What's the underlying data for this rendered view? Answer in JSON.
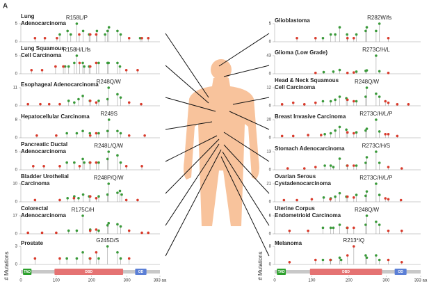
{
  "figure_label": "A",
  "chart_data": [
    {
      "type": "lollipop",
      "title": [
        "Lung",
        "Adenocarcinoma"
      ],
      "hotspot_label": "R158L/P",
      "xlim": [
        0,
        393
      ],
      "ylim": [
        0,
        5
      ],
      "yticks": [
        0,
        5
      ],
      "series": [
        {
          "color": "#3a9a3a",
          "x": [
            110,
            132,
            141,
            158,
            176,
            193,
            215,
            238,
            245,
            249,
            273,
            282,
            337
          ],
          "values": [
            2,
            3,
            2,
            5,
            3,
            2,
            3,
            2,
            3,
            4,
            3,
            2,
            1
          ]
        },
        {
          "color": "#d93a2b",
          "x": [
            40,
            68,
            102,
            165,
            196,
            213,
            306,
            342,
            360
          ],
          "values": [
            1,
            1,
            1,
            2,
            2,
            2,
            1,
            1,
            1
          ]
        }
      ]
    },
    {
      "type": "lollipop",
      "title": [
        "Lung Squamous",
        "Cell Carcinoma"
      ],
      "hotspot_label": "R158H/L/fs",
      "xlim": [
        0,
        393
      ],
      "ylim": [
        0,
        5
      ],
      "yticks": [
        0,
        5
      ],
      "series": [
        {
          "color": "#3a9a3a",
          "x": [
            125,
            135,
            151,
            158,
            175,
            179,
            193,
            220,
            245,
            248,
            273,
            280
          ],
          "values": [
            2,
            2,
            3,
            5,
            3,
            2,
            2,
            3,
            3,
            3,
            3,
            2
          ]
        },
        {
          "color": "#d93a2b",
          "x": [
            30,
            60,
            98,
            120,
            166,
            196,
            213,
            298,
            330
          ],
          "values": [
            1,
            1,
            2,
            2,
            3,
            2,
            3,
            1,
            1
          ]
        }
      ]
    },
    {
      "type": "lollipop",
      "title": [
        "Esophageal Adenocarcinoma"
      ],
      "hotspot_label": "R248Q/W",
      "xlim": [
        0,
        393
      ],
      "ylim": [
        0,
        11
      ],
      "yticks": [
        0,
        11
      ],
      "series": [
        {
          "color": "#3a9a3a",
          "x": [
            135,
            151,
            163,
            175,
            195,
            220,
            245,
            248,
            273,
            282
          ],
          "values": [
            3,
            2,
            4,
            6,
            3,
            3,
            4,
            11,
            7,
            5
          ]
        },
        {
          "color": "#d93a2b",
          "x": [
            20,
            55,
            80,
            110,
            196,
            213,
            306,
            340
          ],
          "values": [
            1,
            1,
            1,
            1,
            3,
            2,
            2,
            1
          ]
        }
      ]
    },
    {
      "type": "lollipop",
      "title": [
        "Hepatocellular Carcinoma"
      ],
      "hotspot_label": "R249S",
      "xlim": [
        0,
        393
      ],
      "ylim": [
        0,
        8
      ],
      "yticks": [
        0,
        8
      ],
      "series": [
        {
          "color": "#3a9a3a",
          "x": [
            130,
            158,
            175,
            195,
            220,
            245,
            249,
            273,
            282
          ],
          "values": [
            2,
            2,
            3,
            2,
            2,
            3,
            8,
            3,
            2
          ]
        },
        {
          "color": "#d93a2b",
          "x": [
            45,
            100,
            196,
            213,
            306,
            350
          ],
          "values": [
            1,
            1,
            1,
            2,
            1,
            1
          ]
        }
      ]
    },
    {
      "type": "lollipop",
      "title": [
        "Pancreatic Ductal",
        "Adenocarcinoma"
      ],
      "hotspot_label": "R248L/Q/W",
      "xlim": [
        0,
        393
      ],
      "ylim": [
        0,
        5
      ],
      "yticks": [
        0,
        5
      ],
      "series": [
        {
          "color": "#3a9a3a",
          "x": [
            130,
            151,
            175,
            179,
            195,
            220,
            245,
            248,
            273,
            282
          ],
          "values": [
            2,
            2,
            3,
            2,
            2,
            2,
            3,
            5,
            4,
            2
          ]
        },
        {
          "color": "#d93a2b",
          "x": [
            35,
            65,
            110,
            166,
            196,
            213,
            298,
            342
          ],
          "values": [
            1,
            1,
            1,
            1,
            2,
            2,
            1,
            1
          ]
        }
      ]
    },
    {
      "type": "lollipop",
      "title": [
        "Bladder Urothelial",
        "Carcinoma"
      ],
      "hotspot_label": "R248P/Q/W",
      "xlim": [
        0,
        393
      ],
      "ylim": [
        0,
        10
      ],
      "yticks": [
        0,
        10
      ],
      "series": [
        {
          "color": "#3a9a3a",
          "x": [
            132,
            151,
            163,
            176,
            193,
            220,
            245,
            248,
            273,
            280,
            285
          ],
          "values": [
            2,
            3,
            2,
            4,
            3,
            3,
            4,
            10,
            5,
            6,
            4
          ]
        },
        {
          "color": "#d93a2b",
          "x": [
            40,
            110,
            150,
            196,
            213,
            298,
            330
          ],
          "values": [
            1,
            1,
            2,
            3,
            2,
            1,
            1
          ]
        }
      ]
    },
    {
      "type": "lollipop",
      "title": [
        "Colorectal",
        "Adenocarcinoma"
      ],
      "hotspot_label": "R175C/H",
      "xlim": [
        0,
        393
      ],
      "ylim": [
        0,
        17
      ],
      "yticks": [
        0,
        17
      ],
      "series": [
        {
          "color": "#3a9a3a",
          "x": [
            135,
            158,
            175,
            196,
            220,
            245,
            248,
            273,
            282
          ],
          "values": [
            3,
            3,
            17,
            4,
            3,
            8,
            10,
            9,
            7
          ]
        },
        {
          "color": "#d93a2b",
          "x": [
            20,
            60,
            100,
            196,
            213,
            306,
            342,
            360
          ],
          "values": [
            1,
            1,
            1,
            3,
            4,
            3,
            1,
            1
          ]
        }
      ]
    },
    {
      "type": "lollipop",
      "title": [
        "Prostate"
      ],
      "hotspot_label": "G245D/S",
      "xlim": [
        0,
        393
      ],
      "ylim": [
        0,
        3
      ],
      "yticks": [
        0,
        3
      ],
      "y_label": "# Mutations",
      "xticks": [
        0,
        100,
        200,
        300,
        {
          "value": 393,
          "label": "393 aa"
        }
      ],
      "domains": [
        {
          "name": "TAD",
          "start": 6,
          "end": 30,
          "color": "#2ca02c"
        },
        {
          "name": "DBD",
          "start": 95,
          "end": 289,
          "color": "#e57373"
        },
        {
          "name": "OD",
          "start": 323,
          "end": 355,
          "color": "#5b7fd6"
        }
      ],
      "series": [
        {
          "color": "#3a9a3a",
          "x": [
            130,
            158,
            175,
            195,
            220,
            245,
            273,
            282
          ],
          "values": [
            1,
            1,
            2,
            1,
            1,
            3,
            2,
            1
          ]
        },
        {
          "color": "#d93a2b",
          "x": [
            40,
            110,
            196,
            213,
            306
          ],
          "values": [
            1,
            1,
            1,
            2,
            1
          ]
        }
      ]
    },
    {
      "type": "lollipop",
      "title": [
        "Glioblastoma"
      ],
      "hotspot_label": "R282W/fs",
      "xlim": [
        0,
        393
      ],
      "ylim": [
        0,
        5
      ],
      "yticks": [
        0,
        5
      ],
      "series": [
        {
          "color": "#3a9a3a",
          "x": [
            130,
            151,
            163,
            175,
            195,
            220,
            245,
            248,
            273,
            282
          ],
          "values": [
            1,
            2,
            2,
            4,
            2,
            2,
            3,
            4,
            3,
            5
          ]
        },
        {
          "color": "#d93a2b",
          "x": [
            60,
            110,
            196,
            213,
            306
          ],
          "values": [
            1,
            1,
            1,
            1,
            1
          ]
        }
      ]
    },
    {
      "type": "lollipop",
      "title": [
        "Glioma (Low Grade)"
      ],
      "hotspot_label": "R273C/H/L",
      "xlim": [
        0,
        393
      ],
      "ylim": [
        0,
        43
      ],
      "yticks": [
        0,
        43
      ],
      "series": [
        {
          "color": "#3a9a3a",
          "x": [
            132,
            158,
            175,
            220,
            245,
            248,
            273,
            282
          ],
          "values": [
            4,
            5,
            9,
            5,
            7,
            8,
            43,
            6
          ]
        },
        {
          "color": "#d93a2b",
          "x": [
            110,
            196,
            213,
            306
          ],
          "values": [
            2,
            2,
            3,
            2
          ]
        }
      ]
    },
    {
      "type": "lollipop",
      "title": [
        "Head & Neck Squamous",
        "Cell Carcinoma"
      ],
      "hotspot_label": "R248Q/W",
      "xlim": [
        0,
        393
      ],
      "ylim": [
        0,
        12
      ],
      "yticks": [
        0,
        12
      ],
      "series": [
        {
          "color": "#3a9a3a",
          "x": [
            130,
            151,
            163,
            175,
            193,
            220,
            245,
            248,
            273,
            282
          ],
          "values": [
            3,
            3,
            4,
            6,
            5,
            3,
            6,
            12,
            8,
            6
          ]
        },
        {
          "color": "#d93a2b",
          "x": [
            20,
            50,
            80,
            110,
            196,
            213,
            298,
            306,
            330,
            360
          ],
          "values": [
            1,
            2,
            1,
            2,
            4,
            3,
            3,
            2,
            1,
            1
          ]
        }
      ]
    },
    {
      "type": "lollipop",
      "title": [
        "Breast Invasive Carcinoma"
      ],
      "hotspot_label": "R273C/H/L/P",
      "xlim": [
        0,
        393
      ],
      "ylim": [
        0,
        20
      ],
      "yticks": [
        0,
        20
      ],
      "series": [
        {
          "color": "#3a9a3a",
          "x": [
            135,
            151,
            163,
            175,
            193,
            220,
            245,
            248,
            273,
            282
          ],
          "values": [
            4,
            5,
            8,
            12,
            9,
            6,
            8,
            10,
            20,
            7
          ]
        },
        {
          "color": "#d93a2b",
          "x": [
            20,
            50,
            90,
            125,
            196,
            213,
            298,
            306,
            330
          ],
          "values": [
            2,
            2,
            3,
            3,
            6,
            5,
            4,
            4,
            2
          ]
        }
      ]
    },
    {
      "type": "lollipop",
      "title": [
        "Stomach Adenocarcinoma"
      ],
      "hotspot_label": "R273C/H/S",
      "xlim": [
        0,
        393
      ],
      "ylim": [
        0,
        13
      ],
      "yticks": [
        0,
        13
      ],
      "series": [
        {
          "color": "#3a9a3a",
          "x": [
            135,
            151,
            158,
            175,
            195,
            220,
            245,
            248,
            273,
            282
          ],
          "values": [
            3,
            3,
            2,
            8,
            3,
            3,
            5,
            9,
            13,
            5
          ]
        },
        {
          "color": "#d93a2b",
          "x": [
            35,
            80,
            110,
            196,
            213,
            306,
            342
          ],
          "values": [
            1,
            1,
            2,
            3,
            3,
            2,
            1
          ]
        }
      ]
    },
    {
      "type": "lollipop",
      "title": [
        "Ovarian Serous",
        "Cystadenocarcinoma"
      ],
      "hotspot_label": "R273C/H/L/P",
      "xlim": [
        0,
        393
      ],
      "ylim": [
        0,
        21
      ],
      "yticks": [
        0,
        21
      ],
      "series": [
        {
          "color": "#3a9a3a",
          "x": [
            132,
            151,
            163,
            175,
            193,
            220,
            245,
            248,
            273,
            282
          ],
          "values": [
            5,
            4,
            6,
            10,
            6,
            8,
            7,
            12,
            21,
            8
          ]
        },
        {
          "color": "#d93a2b",
          "x": [
            25,
            60,
            100,
            150,
            196,
            213,
            298,
            306,
            340
          ],
          "values": [
            2,
            2,
            3,
            3,
            6,
            5,
            4,
            3,
            2
          ]
        }
      ]
    },
    {
      "type": "lollipop",
      "title": [
        "Uterine Corpus",
        "Endometrioid Carcinoma"
      ],
      "hotspot_label": "R248Q/W",
      "xlim": [
        0,
        393
      ],
      "ylim": [
        0,
        6
      ],
      "yticks": [
        0,
        6
      ],
      "series": [
        {
          "color": "#3a9a3a",
          "x": [
            130,
            151,
            158,
            175,
            195,
            245,
            248,
            273,
            282
          ],
          "values": [
            2,
            2,
            2,
            3,
            2,
            3,
            6,
            4,
            3
          ]
        },
        {
          "color": "#d93a2b",
          "x": [
            40,
            90,
            196,
            213,
            306,
            342
          ],
          "values": [
            1,
            1,
            2,
            2,
            1,
            1
          ]
        }
      ]
    },
    {
      "type": "lollipop",
      "title": [
        "Melanoma"
      ],
      "hotspot_label": "R213*/Q",
      "xlim": [
        0,
        393
      ],
      "ylim": [
        0,
        8
      ],
      "yticks": [
        0,
        8
      ],
      "y_label": "# Mutations",
      "xticks": [
        0,
        100,
        200,
        300,
        {
          "value": 393,
          "label": "393 aa"
        }
      ],
      "domains": [
        {
          "name": "TAD",
          "start": 6,
          "end": 30,
          "color": "#2ca02c"
        },
        {
          "name": "DBD",
          "start": 95,
          "end": 289,
          "color": "#e57373"
        },
        {
          "name": "OD",
          "start": 323,
          "end": 355,
          "color": "#5b7fd6"
        }
      ],
      "series": [
        {
          "color": "#3a9a3a",
          "x": [
            130,
            151,
            175,
            179,
            245,
            248,
            273,
            282
          ],
          "values": [
            2,
            2,
            3,
            2,
            4,
            3,
            4,
            2
          ]
        },
        {
          "color": "#d93a2b",
          "x": [
            40,
            110,
            150,
            196,
            213,
            306,
            342
          ],
          "values": [
            1,
            2,
            2,
            4,
            8,
            2,
            1
          ]
        }
      ]
    }
  ]
}
